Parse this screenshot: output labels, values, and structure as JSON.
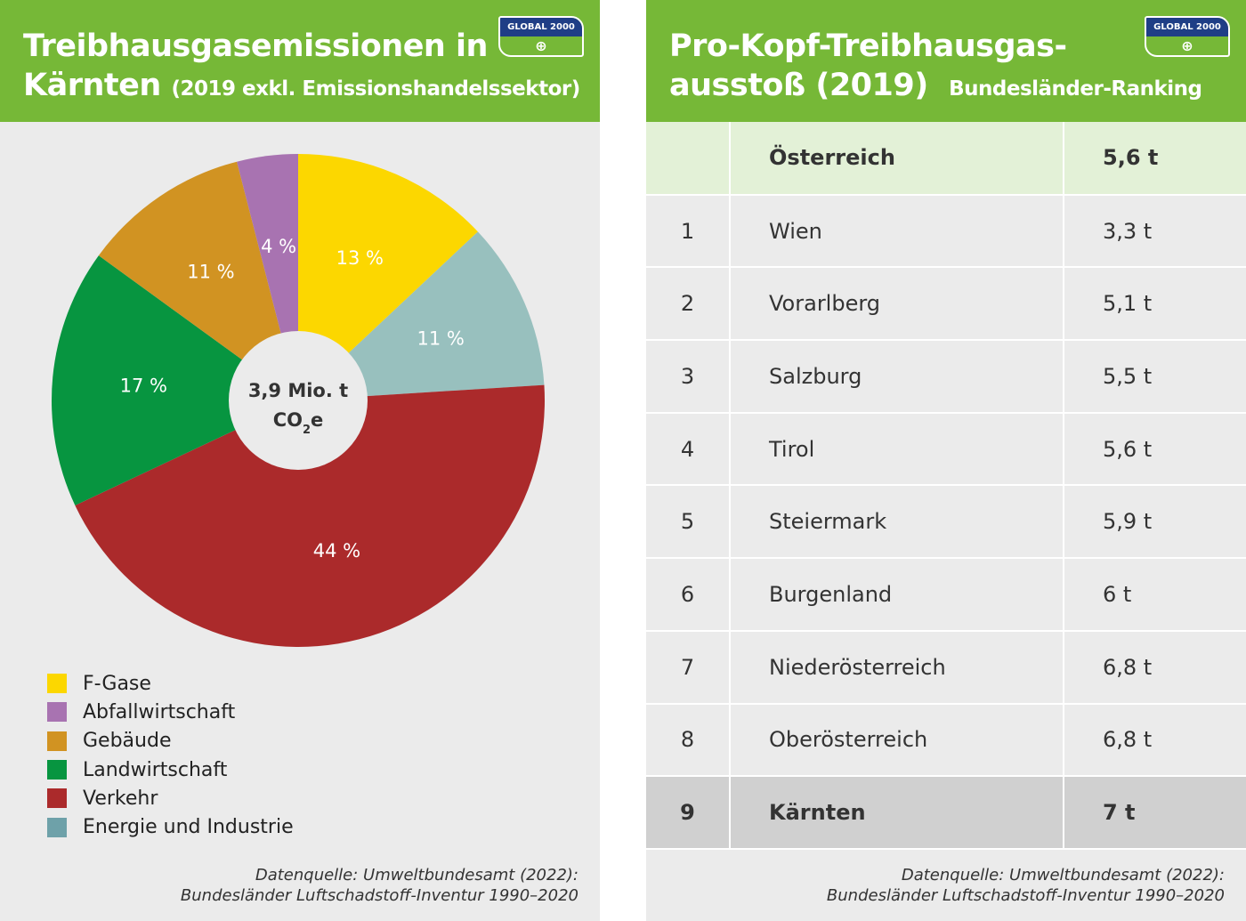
{
  "left": {
    "title_line1": "Treibhausgasemissionen in",
    "title_line2": "Kärnten",
    "title_sub": "(2019 exkl. Emissionshandelssektor)",
    "logo": "GLOBAL 2000",
    "center_line1": "3,9 Mio. t",
    "center_co": "CO",
    "center_sub": "2",
    "center_e": "e",
    "source_line1": "Datenquelle: Umweltbundesamt (2022):",
    "source_line2": "Bundesländer Luftschadstoff-Inventur 1990–2020"
  },
  "chart_data": {
    "type": "pie",
    "donut": true,
    "total": "3,9 Mio. t CO2e",
    "slices": [
      {
        "name": "F-Gase",
        "value": 13,
        "label": "13 %",
        "color": "#fcd700"
      },
      {
        "name": "Energie und Industrie",
        "value": 11,
        "label": "11 %",
        "color": "#98c0be",
        "legend_color": "#6ea1a9"
      },
      {
        "name": "Verkehr",
        "value": 44,
        "label": "44 %",
        "color": "#ab2a2b"
      },
      {
        "name": "Landwirtschaft",
        "value": 17,
        "label": "17 %",
        "color": "#079540"
      },
      {
        "name": "Gebäude",
        "value": 11,
        "label": "11 %",
        "color": "#d19322"
      },
      {
        "name": "Abfallwirtschaft",
        "value": 4,
        "label": "4 %",
        "color": "#a873b1"
      }
    ],
    "legend_order": [
      "F-Gase",
      "Abfallwirtschaft",
      "Gebäude",
      "Landwirtschaft",
      "Verkehr",
      "Energie und Industrie"
    ],
    "legend_placement": "bottom-left"
  },
  "right": {
    "title_line1": "Pro-Kopf-Treibhausgas-",
    "title_line2": "ausstoß (2019)",
    "title_sub": "Bundesländer-Ranking",
    "logo": "GLOBAL 2000",
    "header": {
      "rank": "",
      "name": "Österreich",
      "value": "5,6 t"
    },
    "rows": [
      {
        "rank": "1",
        "name": "Wien",
        "value": "3,3 t"
      },
      {
        "rank": "2",
        "name": "Vorarlberg",
        "value": "5,1 t"
      },
      {
        "rank": "3",
        "name": "Salzburg",
        "value": "5,5 t"
      },
      {
        "rank": "4",
        "name": "Tirol",
        "value": "5,6 t"
      },
      {
        "rank": "5",
        "name": "Steiermark",
        "value": "5,9 t"
      },
      {
        "rank": "6",
        "name": "Burgenland",
        "value": "6 t"
      },
      {
        "rank": "7",
        "name": "Niederösterreich",
        "value": "6,8 t"
      },
      {
        "rank": "8",
        "name": "Oberösterreich",
        "value": "6,8 t"
      },
      {
        "rank": "9",
        "name": "Kärnten",
        "value": "7 t",
        "highlight": true
      }
    ],
    "source_line1": "Datenquelle: Umweltbundesamt (2022):",
    "source_line2": "Bundesländer Luftschadstoff-Inventur 1990–2020"
  }
}
